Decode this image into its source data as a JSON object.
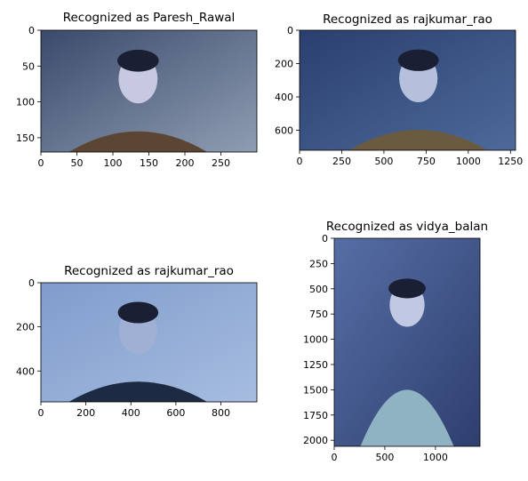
{
  "chart_data": [
    {
      "type": "image",
      "title": "Recognized as Paresh_Rawal",
      "xlim": [
        0,
        300
      ],
      "ylim": [
        170,
        0
      ],
      "x_ticks": [
        0,
        50,
        100,
        150,
        200,
        250
      ],
      "y_ticks": [
        0,
        50,
        100,
        150
      ],
      "colors": {
        "bg": "#8f9db3",
        "accent": "#3b4a6b",
        "subject": "#c6c9e0",
        "suit": "#5a4632"
      }
    },
    {
      "type": "image",
      "title": "Recognized as rajkumar_rao",
      "xlim": [
        0,
        1280
      ],
      "ylim": [
        720,
        0
      ],
      "x_ticks": [
        0,
        250,
        500,
        750,
        1000,
        1250
      ],
      "y_ticks": [
        0,
        200,
        400,
        600
      ],
      "colors": {
        "bg": "#4d6a9a",
        "accent": "#2a3f6e",
        "subject": "#b4c0dc",
        "suit": "#6a5a3f"
      }
    },
    {
      "type": "image",
      "title": "Recognized as rajkumar_rao",
      "xlim": [
        0,
        960
      ],
      "ylim": [
        540,
        0
      ],
      "x_ticks": [
        0,
        200,
        400,
        600,
        800
      ],
      "y_ticks": [
        0,
        200,
        400
      ],
      "colors": {
        "bg": "#a7bde0",
        "accent": "#7f9ccc",
        "subject": "#9fb0d4",
        "suit": "#1d2a44"
      }
    },
    {
      "type": "image",
      "title": "Recognized as vidya_balan",
      "xlim": [
        0,
        1440
      ],
      "ylim": [
        2060,
        0
      ],
      "x_ticks": [
        0,
        500,
        1000
      ],
      "y_ticks": [
        0,
        250,
        500,
        750,
        1000,
        1250,
        1500,
        1750,
        2000
      ],
      "colors": {
        "bg": "#2e3f6e",
        "accent": "#566ea6",
        "subject": "#c1c8e4",
        "suit": "#8fb3c2"
      }
    }
  ]
}
